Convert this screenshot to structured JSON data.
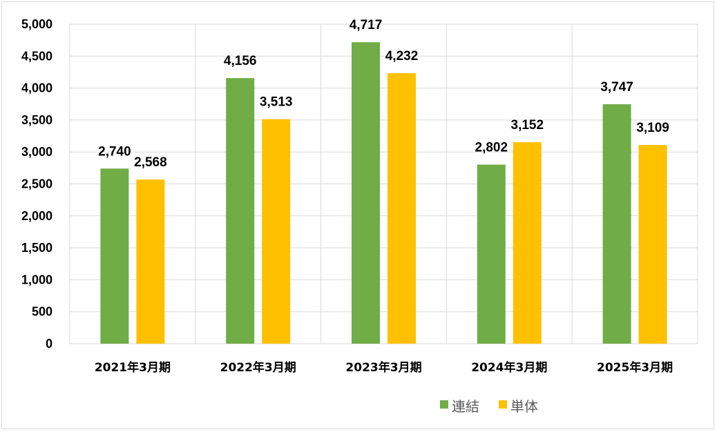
{
  "chart_data": {
    "type": "bar",
    "categories": [
      "2021年3月期",
      "2022年3月期",
      "2023年3月期",
      "2024年3月期",
      "2025年3月期"
    ],
    "series": [
      {
        "name": "連結",
        "color": "#70ad47",
        "values": [
          2740,
          4156,
          4717,
          2802,
          3747
        ]
      },
      {
        "name": "単体",
        "color": "#ffc000",
        "values": [
          2568,
          3513,
          4232,
          3152,
          3109
        ]
      }
    ],
    "yticks": [
      "0",
      "500",
      "1,000",
      "1,500",
      "2,000",
      "2,500",
      "3,000",
      "3,500",
      "4,000",
      "4,500",
      "5,000"
    ],
    "ylim": [
      0,
      5000
    ],
    "grid": true,
    "legend_position": "bottom-right",
    "title": "",
    "xlabel": "",
    "ylabel": ""
  }
}
